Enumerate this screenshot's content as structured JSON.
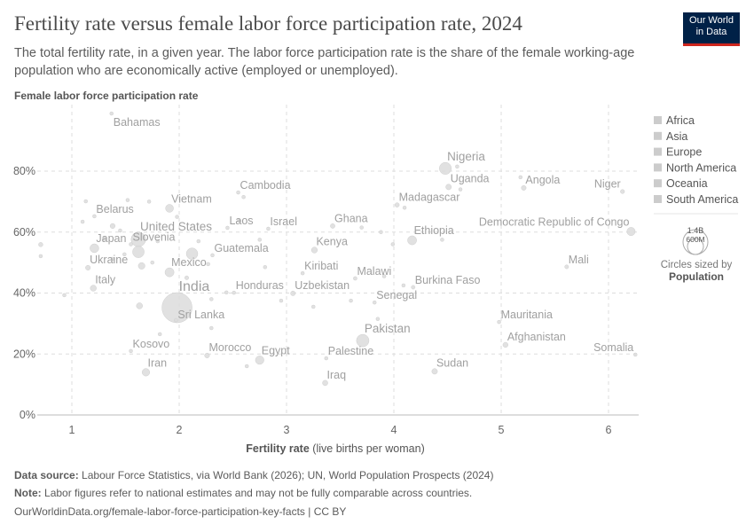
{
  "title": "Fertility rate versus female labor force participation rate, 2024",
  "subtitle": "The total fertility rate, in a given year. The labor force participation rate is the share of the female working-age population who are economically active (employed or unemployed).",
  "logo": {
    "line1": "Our World",
    "line2": "in Data",
    "bg": "#002147",
    "accent": "#ce261e"
  },
  "footer": {
    "source_label": "Data source:",
    "source": "Labour Force Statistics, via World Bank (2026); UN, World Population Prospects (2024)",
    "note_label": "Note:",
    "note": "Labor figures refer to national estimates and may not be fully comparable across countries.",
    "url": "OurWorldinData.org/female-labor-force-participation-key-facts | CC BY"
  },
  "chart_data": {
    "type": "scatter",
    "xlabel_bold": "Fertility rate",
    "xlabel_rest": "(live births per woman)",
    "ylabel": "Female labor force participation rate",
    "xlim": [
      0.68,
      6.28
    ],
    "ylim": [
      0,
      100
    ],
    "xticks": [
      "1",
      "2",
      "3",
      "4",
      "5",
      "6"
    ],
    "yticks": [
      "0%",
      "20%",
      "40%",
      "60%",
      "80%"
    ],
    "grid": true,
    "legend_position": "right",
    "legend": [
      "Africa",
      "Asia",
      "Europe",
      "North America",
      "Oceania",
      "South America"
    ],
    "legend_color": "#cccccc",
    "point_color": "#dcdcdc",
    "size_legend": {
      "large": "1.4B",
      "small": "600M",
      "caption": "Circles sized by",
      "variable": "Population"
    },
    "points": [
      {
        "label": "Bahamas",
        "x": 1.37,
        "y": 98.9,
        "pop": 0.4
      },
      {
        "label": "Nigeria",
        "x": 4.48,
        "y": 80.9,
        "pop": 230
      },
      {
        "label": "Uganda",
        "x": 4.51,
        "y": 74.8,
        "pop": 50
      },
      {
        "label": "Angola",
        "x": 5.21,
        "y": 74.5,
        "pop": 37
      },
      {
        "label": "Niger",
        "x": 6.13,
        "y": 73.3,
        "pop": 27
      },
      {
        "label": "Madagascar",
        "x": 4.03,
        "y": 68.9,
        "pop": 31
      },
      {
        "label": "Cambodia",
        "x": 2.55,
        "y": 73.0,
        "pop": 17
      },
      {
        "label": "Vietnam",
        "x": 1.91,
        "y": 67.8,
        "pop": 100
      },
      {
        "label": "Belarus",
        "x": 1.21,
        "y": 65.2,
        "pop": 9
      },
      {
        "label": "Ghana",
        "x": 3.43,
        "y": 62.0,
        "pop": 34
      },
      {
        "label": "Laos",
        "x": 2.45,
        "y": 61.4,
        "pop": 7
      },
      {
        "label": "Israel",
        "x": 2.83,
        "y": 61.1,
        "pop": 9
      },
      {
        "label": "Democratic Republic of Congo",
        "x": 6.21,
        "y": 60.2,
        "pop": 110
      },
      {
        "label": "Ethiopia",
        "x": 4.17,
        "y": 57.3,
        "pop": 130
      },
      {
        "label": "United States",
        "x": 1.62,
        "y": 57.6,
        "pop": 340
      },
      {
        "label": "Japan",
        "x": 1.21,
        "y": 54.7,
        "pop": 124
      },
      {
        "label": "Slovenia",
        "x": 1.55,
        "y": 56.0,
        "pop": 2
      },
      {
        "label": "Kenya",
        "x": 3.26,
        "y": 54.1,
        "pop": 56
      },
      {
        "label": "Guatemala",
        "x": 2.31,
        "y": 52.4,
        "pop": 18
      },
      {
        "label": "Mali",
        "x": 5.61,
        "y": 48.6,
        "pop": 24
      },
      {
        "label": "Ukraine",
        "x": 1.15,
        "y": 48.3,
        "pop": 38
      },
      {
        "label": "Mexico",
        "x": 1.91,
        "y": 46.8,
        "pop": 130
      },
      {
        "label": "Kiribati",
        "x": 3.15,
        "y": 46.5,
        "pop": 0.1
      },
      {
        "label": "Malawi",
        "x": 3.64,
        "y": 44.8,
        "pop": 21
      },
      {
        "label": "Burkina Faso",
        "x": 4.18,
        "y": 41.9,
        "pop": 23
      },
      {
        "label": "Italy",
        "x": 1.2,
        "y": 41.6,
        "pop": 59
      },
      {
        "label": "Honduras",
        "x": 2.51,
        "y": 40.1,
        "pop": 11
      },
      {
        "label": "Uzbekistan",
        "x": 3.06,
        "y": 39.9,
        "pop": 36
      },
      {
        "label": "India",
        "x": 1.98,
        "y": 35.2,
        "pop": 1450
      },
      {
        "label": "Senegal",
        "x": 3.82,
        "y": 36.9,
        "pop": 18
      },
      {
        "label": "Sri Lanka",
        "x": 1.97,
        "y": 31.1,
        "pop": 22
      },
      {
        "label": "Mauritania",
        "x": 4.98,
        "y": 30.5,
        "pop": 5
      },
      {
        "label": "Pakistan",
        "x": 3.71,
        "y": 24.4,
        "pop": 250
      },
      {
        "label": "Afghanistan",
        "x": 5.04,
        "y": 23.0,
        "pop": 42
      },
      {
        "label": "Kosovo",
        "x": 1.55,
        "y": 21.0,
        "pop": 1.6
      },
      {
        "label": "Somalia",
        "x": 6.25,
        "y": 19.8,
        "pop": 19
      },
      {
        "label": "Morocco",
        "x": 2.26,
        "y": 19.5,
        "pop": 38
      },
      {
        "label": "Egypt",
        "x": 2.75,
        "y": 18.0,
        "pop": 116
      },
      {
        "label": "Palestine",
        "x": 3.37,
        "y": 18.6,
        "pop": 5
      },
      {
        "label": "Sudan",
        "x": 4.38,
        "y": 14.3,
        "pop": 50
      },
      {
        "label": "Iran",
        "x": 1.69,
        "y": 14.0,
        "pop": 91
      },
      {
        "label": "Iraq",
        "x": 3.36,
        "y": 10.5,
        "pop": 46
      },
      {
        "label": "",
        "x": 2.12,
        "y": 52.9,
        "pop": 210
      },
      {
        "label": "",
        "x": 1.62,
        "y": 53.5,
        "pop": 215
      },
      {
        "label": "",
        "x": 1.65,
        "y": 48.9,
        "pop": 70
      },
      {
        "label": "",
        "x": 1.63,
        "y": 35.8,
        "pop": 60
      },
      {
        "label": "",
        "x": 0.71,
        "y": 55.9,
        "pop": 30
      },
      {
        "label": "",
        "x": 0.71,
        "y": 52.1,
        "pop": 3
      },
      {
        "label": "",
        "x": 0.93,
        "y": 39.3,
        "pop": 5
      },
      {
        "label": "",
        "x": 1.13,
        "y": 70.1,
        "pop": 5
      },
      {
        "label": "",
        "x": 1.1,
        "y": 63.4,
        "pop": 5
      },
      {
        "label": "",
        "x": 1.38,
        "y": 62.0,
        "pop": 40
      },
      {
        "label": "",
        "x": 1.45,
        "y": 60.5,
        "pop": 10
      },
      {
        "label": "",
        "x": 1.49,
        "y": 52.7,
        "pop": 10
      },
      {
        "label": "",
        "x": 1.38,
        "y": 51.2,
        "pop": 8
      },
      {
        "label": "",
        "x": 1.3,
        "y": 57.8,
        "pop": 20
      },
      {
        "label": "",
        "x": 1.52,
        "y": 70.5,
        "pop": 5
      },
      {
        "label": "",
        "x": 1.72,
        "y": 70.0,
        "pop": 3
      },
      {
        "label": "",
        "x": 1.98,
        "y": 65.0,
        "pop": 20
      },
      {
        "label": "",
        "x": 1.8,
        "y": 57.0,
        "pop": 10
      },
      {
        "label": "",
        "x": 1.75,
        "y": 50.0,
        "pop": 8
      },
      {
        "label": "",
        "x": 2.07,
        "y": 45.0,
        "pop": 25
      },
      {
        "label": "",
        "x": 2.27,
        "y": 49.5,
        "pop": 6
      },
      {
        "label": "",
        "x": 2.18,
        "y": 57.0,
        "pop": 4
      },
      {
        "label": "",
        "x": 2.56,
        "y": 63.7,
        "pop": 3
      },
      {
        "label": "",
        "x": 2.6,
        "y": 71.5,
        "pop": 3
      },
      {
        "label": "",
        "x": 2.75,
        "y": 57.5,
        "pop": 3
      },
      {
        "label": "",
        "x": 2.8,
        "y": 48.5,
        "pop": 4
      },
      {
        "label": "",
        "x": 2.44,
        "y": 40.2,
        "pop": 3
      },
      {
        "label": "",
        "x": 2.3,
        "y": 38.0,
        "pop": 5
      },
      {
        "label": "",
        "x": 2.95,
        "y": 37.5,
        "pop": 3
      },
      {
        "label": "",
        "x": 3.25,
        "y": 35.5,
        "pop": 3
      },
      {
        "label": "",
        "x": 1.82,
        "y": 26.5,
        "pop": 3
      },
      {
        "label": "",
        "x": 2.3,
        "y": 28.5,
        "pop": 3
      },
      {
        "label": "",
        "x": 2.63,
        "y": 16.0,
        "pop": 3
      },
      {
        "label": "",
        "x": 3.7,
        "y": 61.5,
        "pop": 3
      },
      {
        "label": "",
        "x": 3.88,
        "y": 60.0,
        "pop": 3
      },
      {
        "label": "",
        "x": 3.99,
        "y": 56.0,
        "pop": 3
      },
      {
        "label": "",
        "x": 4.1,
        "y": 68.0,
        "pop": 4
      },
      {
        "label": "",
        "x": 4.59,
        "y": 81.5,
        "pop": 10
      },
      {
        "label": "",
        "x": 4.62,
        "y": 74.0,
        "pop": 4
      },
      {
        "label": "",
        "x": 4.45,
        "y": 57.5,
        "pop": 4
      },
      {
        "label": "",
        "x": 5.18,
        "y": 78.0,
        "pop": 3
      },
      {
        "label": "",
        "x": 3.6,
        "y": 37.5,
        "pop": 3
      },
      {
        "label": "",
        "x": 3.85,
        "y": 31.5,
        "pop": 3
      },
      {
        "label": "",
        "x": 4.09,
        "y": 42.5,
        "pop": 3
      },
      {
        "label": "",
        "x": 3.91,
        "y": 45.5,
        "pop": 3
      }
    ]
  }
}
